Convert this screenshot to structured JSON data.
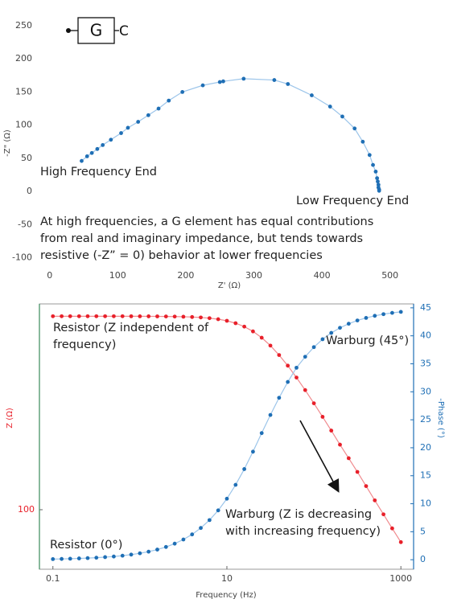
{
  "chart_data": [
    {
      "type": "line",
      "circuit": {
        "element": "G",
        "terminal": "C"
      },
      "x_label": "Z' (Ω)",
      "y_label": "-Z\" (Ω)",
      "xlim": [
        -15,
        550
      ],
      "ylim": [
        -115,
        262
      ],
      "xticks": [
        0,
        100,
        200,
        300,
        400,
        500
      ],
      "yticks": [
        -100,
        -50,
        0,
        50,
        100,
        150,
        200,
        250
      ],
      "x": [
        47,
        55,
        62,
        70,
        78,
        90,
        105,
        115,
        130,
        145,
        160,
        175,
        195,
        225,
        250,
        255,
        285,
        330,
        350,
        385,
        412,
        430,
        448,
        460,
        470,
        475,
        479,
        481,
        482,
        483,
        483,
        484,
        484
      ],
      "series": [
        {
          "color": "#1f6fb5",
          "line_color": "#9cc5ea",
          "values": [
            46,
            53,
            58,
            64,
            70,
            78,
            88,
            96,
            105,
            115,
            125,
            137,
            150,
            160,
            165,
            166,
            170,
            168,
            162,
            145,
            128,
            113,
            95,
            75,
            55,
            40,
            30,
            20,
            15,
            10,
            6,
            3,
            1
          ]
        }
      ],
      "annotations": [
        {
          "lines": [
            "High Frequency End"
          ]
        },
        {
          "lines": [
            "Low Frequency End"
          ]
        },
        {
          "lines": [
            "At high frequencies, a G element has equal contributions",
            "from real and imaginary impedance, but tends towards",
            "resistive (-Z” = 0) behavior at lower frequencies"
          ]
        }
      ]
    },
    {
      "type": "line",
      "x_label": "Frequency (Hz)",
      "y_label": "Z (Ω)",
      "y2_label": "-Phase (°)",
      "xscale": "log",
      "yscale": "log",
      "xlim": [
        0.07,
        1400
      ],
      "ylim": [
        61.6,
        534
      ],
      "y2lim": [
        -1.7,
        45.7
      ],
      "xticks": [
        0.1,
        10,
        1000
      ],
      "yticks": [
        100
      ],
      "y2ticks": [
        0,
        5,
        10,
        15,
        20,
        25,
        30,
        35,
        40,
        45
      ],
      "y_color": "#e8202a",
      "y2_color": "#1f6fb5",
      "x": [
        0.1,
        0.126,
        0.158,
        0.2,
        0.251,
        0.316,
        0.398,
        0.501,
        0.631,
        0.794,
        1,
        1.259,
        1.585,
        1.995,
        2.512,
        3.162,
        3.981,
        5.012,
        6.31,
        7.943,
        10,
        12.59,
        15.85,
        19.95,
        25.12,
        31.62,
        39.81,
        50.12,
        63.1,
        79.43,
        100,
        125.9,
        158.5,
        199.5,
        251.2,
        316.2,
        398.1,
        501.2,
        631,
        794.3,
        1000
      ],
      "series": [
        {
          "color": "#e8202a",
          "line_color": "#f08a8e",
          "values": [
            483,
            483,
            483,
            483,
            483,
            483,
            483,
            483,
            483,
            482.9,
            482.8,
            482.7,
            482.5,
            482.2,
            481.8,
            481.1,
            480.0,
            478.2,
            475.5,
            471.5,
            465.4,
            456.4,
            443.9,
            427.0,
            405.6,
            380.3,
            352.2,
            323.0,
            293.2,
            264.8,
            237.8,
            213.0,
            190.4,
            169.8,
            152.1,
            136.0,
            121.2,
            107.9,
            96.3,
            85.9,
            76.8
          ]
        },
        {
          "color": "#1f6fb5",
          "line_color": "#9cc5ea",
          "axis": "y2",
          "values": [
            0.11,
            0.14,
            0.18,
            0.23,
            0.29,
            0.36,
            0.46,
            0.57,
            0.72,
            0.91,
            1.15,
            1.44,
            1.81,
            2.28,
            2.87,
            3.61,
            4.52,
            5.67,
            7.08,
            8.81,
            10.9,
            13.38,
            16.19,
            19.3,
            22.62,
            25.86,
            28.93,
            31.76,
            34.3,
            36.26,
            37.98,
            39.39,
            40.52,
            41.43,
            42.16,
            42.74,
            43.2,
            43.57,
            43.87,
            44.1,
            44.28
          ]
        }
      ],
      "annotations": [
        {
          "lines": [
            "Resistor (Z independent of",
            "frequency)"
          ]
        },
        {
          "lines": [
            "Warburg (45°)"
          ]
        },
        {
          "lines": [
            "Resistor (0°)"
          ]
        },
        {
          "lines": [
            "Warburg (Z is decreasing",
            "with increasing frequency)"
          ]
        }
      ]
    }
  ]
}
